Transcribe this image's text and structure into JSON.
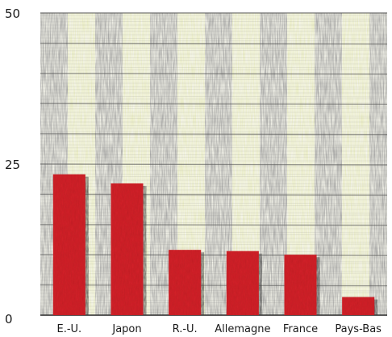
{
  "chart_data": {
    "type": "bar",
    "categories": [
      "E.-U.",
      "Japon",
      "R.-U.",
      "Allemagne",
      "France",
      "Pays-Bas"
    ],
    "values": [
      23.3,
      21.8,
      10.8,
      10.6,
      10.0,
      3.0
    ],
    "title": "",
    "xlabel": "",
    "ylabel": "",
    "ylim": [
      0,
      50
    ],
    "yticks": [
      "0",
      "25",
      "50"
    ],
    "grid": true,
    "legend": "none",
    "colors": {
      "bar": "#d8232a",
      "bar_shadow": "#3a3a3a",
      "background_gray": "#9c9c9c",
      "background_yellow": "#e9ecc0",
      "gridline": "#555555"
    }
  }
}
